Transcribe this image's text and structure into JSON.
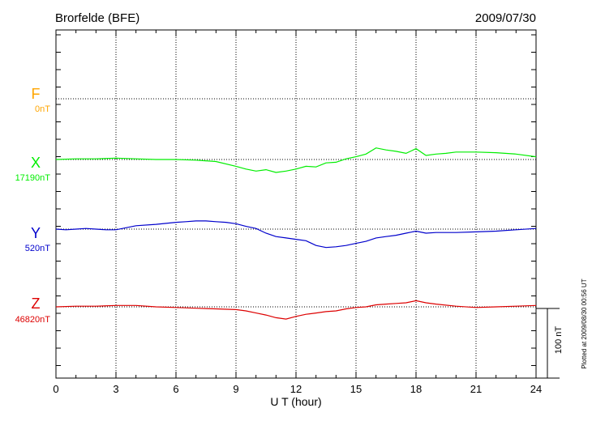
{
  "chart_data": {
    "type": "line",
    "title": "Brorfelde (BFE)",
    "date": "2009/07/30",
    "xlabel": "U T (hour)",
    "xlim": [
      0,
      24
    ],
    "xticks": [
      "0",
      "3",
      "6",
      "9",
      "12",
      "15",
      "18",
      "21",
      "24"
    ],
    "scale_bar_label": "100 nT",
    "plotted_note": "Plotted at 2009/08/30 00:56 UT",
    "colors": {
      "F": "#ffa500",
      "X": "#00ee00",
      "Y": "#0000cc",
      "Z": "#dd0000"
    },
    "series": [
      {
        "name": "F",
        "baseline": "0nT",
        "x": [],
        "values": []
      },
      {
        "name": "X",
        "baseline": "17190nT",
        "x": [
          0,
          1,
          2,
          3,
          4,
          5,
          6,
          7,
          8,
          9,
          9.5,
          10,
          10.5,
          11,
          11.5,
          12,
          12.5,
          13,
          13.5,
          14,
          14.5,
          15,
          15.5,
          16,
          16.5,
          17,
          17.5,
          18,
          18.5,
          19,
          19.5,
          20,
          21,
          22,
          23,
          24
        ],
        "values": [
          0,
          1,
          1,
          2,
          1,
          0,
          0,
          -1,
          -3,
          -10,
          -14,
          -17,
          -15,
          -19,
          -17,
          -14,
          -10,
          -11,
          -5,
          -4,
          1,
          4,
          8,
          17,
          14,
          12,
          9,
          16,
          6,
          8,
          9,
          11,
          11,
          10,
          8,
          4
        ]
      },
      {
        "name": "Y",
        "baseline": "520nT",
        "x": [
          0,
          0.5,
          1,
          1.5,
          2,
          2.5,
          3,
          4,
          5,
          6,
          6.5,
          7,
          7.5,
          8,
          8.5,
          9,
          9.5,
          10,
          10.5,
          11,
          11.5,
          12,
          12.5,
          13,
          13.5,
          14,
          14.5,
          15,
          15.5,
          16,
          16.5,
          17,
          17.5,
          18,
          18.5,
          19,
          20,
          21,
          22,
          23,
          24
        ],
        "values": [
          0,
          -1,
          0,
          1,
          0,
          -1,
          -1,
          5,
          7,
          10,
          11,
          12,
          12,
          11,
          10,
          8,
          4,
          1,
          -6,
          -11,
          -13,
          -15,
          -17,
          -24,
          -27,
          -26,
          -24,
          -21,
          -18,
          -13,
          -11,
          -9,
          -6,
          -3,
          -6,
          -5,
          -5,
          -4,
          -3,
          -1,
          1
        ]
      },
      {
        "name": "Z",
        "baseline": "46820nT",
        "x": [
          0,
          1,
          2,
          3,
          4,
          5,
          6,
          7,
          8,
          9,
          9.5,
          10,
          10.5,
          11,
          11.5,
          12,
          12.5,
          13,
          13.5,
          14,
          14.5,
          15,
          15.5,
          16,
          16.5,
          17,
          17.5,
          18,
          18.5,
          19,
          20,
          21,
          22,
          23,
          24
        ],
        "values": [
          0,
          1,
          1,
          2,
          2,
          0,
          -1,
          -2,
          -3,
          -4,
          -6,
          -9,
          -12,
          -16,
          -18,
          -14,
          -11,
          -9,
          -7,
          -6,
          -3,
          -1,
          0,
          3,
          4,
          5,
          6,
          9,
          6,
          4,
          1,
          -1,
          0,
          1,
          2
        ]
      }
    ]
  }
}
